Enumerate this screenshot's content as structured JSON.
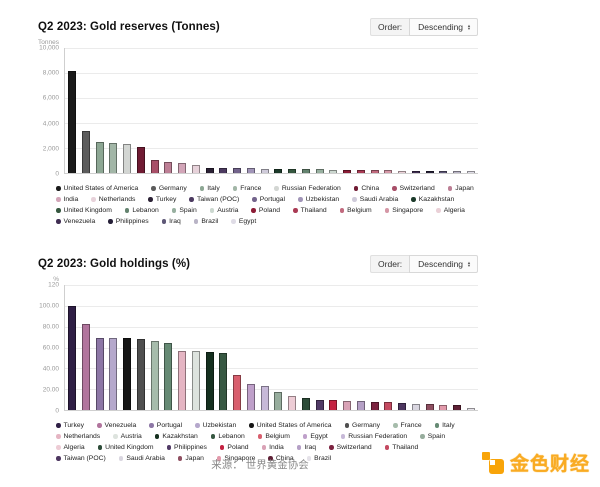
{
  "chart_data": [
    {
      "type": "bar",
      "title": "Q2 2023: Gold reserves (Tonnes)",
      "ylabel": "Tonnes",
      "xlabel": "",
      "ylim": [
        0,
        10000
      ],
      "grid": true,
      "legend_position": "bottom",
      "order": {
        "label": "Order:",
        "value": "Descending"
      },
      "y_ticks": [
        {
          "v": 10000,
          "label": "10,000"
        },
        {
          "v": 8000,
          "label": "8,000"
        },
        {
          "v": 6000,
          "label": "6,000"
        },
        {
          "v": 4000,
          "label": "4,000"
        },
        {
          "v": 2000,
          "label": "2,000"
        },
        {
          "v": 0,
          "label": "0"
        }
      ],
      "series": [
        {
          "name": "United States of America",
          "value": 8133,
          "color": "#1a1a1a"
        },
        {
          "name": "Germany",
          "value": 3353,
          "color": "#5c5c5c"
        },
        {
          "name": "Italy",
          "value": 2452,
          "color": "#8da794"
        },
        {
          "name": "France",
          "value": 2437,
          "color": "#a2b6a7"
        },
        {
          "name": "Russian Federation",
          "value": 2330,
          "color": "#d3d6d3"
        },
        {
          "name": "China",
          "value": 2113,
          "color": "#701b33"
        },
        {
          "name": "Switzerland",
          "value": 1040,
          "color": "#a84f68"
        },
        {
          "name": "Japan",
          "value": 846,
          "color": "#bd7f95"
        },
        {
          "name": "India",
          "value": 797,
          "color": "#d2a5b8"
        },
        {
          "name": "Netherlands",
          "value": 612,
          "color": "#e7d2da"
        },
        {
          "name": "Turkey",
          "value": 440,
          "color": "#2b2135"
        },
        {
          "name": "Taiwan (POC)",
          "value": 424,
          "color": "#4c3a60"
        },
        {
          "name": "Portugal",
          "value": 383,
          "color": "#73648c"
        },
        {
          "name": "Uzbekistan",
          "value": 377,
          "color": "#a195b8"
        },
        {
          "name": "Saudi Arabia",
          "value": 323,
          "color": "#cfcbda"
        },
        {
          "name": "Kazakhstan",
          "value": 314,
          "color": "#1c3a2a"
        },
        {
          "name": "United Kingdom",
          "value": 310,
          "color": "#35573f"
        },
        {
          "name": "Lebanon",
          "value": 287,
          "color": "#64836f"
        },
        {
          "name": "Spain",
          "value": 282,
          "color": "#98b0a0"
        },
        {
          "name": "Austria",
          "value": 280,
          "color": "#cbd7cf"
        },
        {
          "name": "Poland",
          "value": 263,
          "color": "#8c1c36"
        },
        {
          "name": "Thailand",
          "value": 244,
          "color": "#aa3a54"
        },
        {
          "name": "Belgium",
          "value": 227,
          "color": "#c16a7e"
        },
        {
          "name": "Singapore",
          "value": 222,
          "color": "#d597a6"
        },
        {
          "name": "Algeria",
          "value": 174,
          "color": "#ead0d7"
        },
        {
          "name": "Venezuela",
          "value": 161,
          "color": "#3f2d52"
        },
        {
          "name": "Philippines",
          "value": 157,
          "color": "#262038"
        },
        {
          "name": "Iraq",
          "value": 130,
          "color": "#5e5877"
        },
        {
          "name": "Brazil",
          "value": 130,
          "color": "#b9b4c6"
        },
        {
          "name": "Egypt",
          "value": 126,
          "color": "#dfdce6"
        }
      ]
    },
    {
      "type": "bar",
      "title": "Q2 2023: Gold holdings (%)",
      "ylabel": "%",
      "xlabel": "",
      "ylim": [
        0,
        120
      ],
      "grid": true,
      "legend_position": "bottom",
      "order": {
        "label": "Order:",
        "value": "Descending"
      },
      "y_ticks": [
        {
          "v": 120,
          "label": "120"
        },
        {
          "v": 100,
          "label": "100.00"
        },
        {
          "v": 80,
          "label": "80.00"
        },
        {
          "v": 60,
          "label": "60.00"
        },
        {
          "v": 40,
          "label": "40.00"
        },
        {
          "v": 20,
          "label": "20.00"
        },
        {
          "v": 0,
          "label": "0"
        }
      ],
      "series": [
        {
          "name": "Turkey",
          "value": 100,
          "color": "#2f1f45"
        },
        {
          "name": "Venezuela",
          "value": 83,
          "color": "#b1749d"
        },
        {
          "name": "Portugal",
          "value": 69.5,
          "color": "#8d77a6"
        },
        {
          "name": "Uzbekistan",
          "value": 69,
          "color": "#b5a8cc"
        },
        {
          "name": "United States of America",
          "value": 68.8,
          "color": "#161616"
        },
        {
          "name": "Germany",
          "value": 67.9,
          "color": "#4f4f4f"
        },
        {
          "name": "France",
          "value": 66.5,
          "color": "#a6bcab"
        },
        {
          "name": "Italy",
          "value": 64.5,
          "color": "#668a74"
        },
        {
          "name": "Netherlands",
          "value": 57,
          "color": "#e5b5c3"
        },
        {
          "name": "Austria",
          "value": 56.5,
          "color": "#dde3de"
        },
        {
          "name": "Kazakhstan",
          "value": 56,
          "color": "#15301f"
        },
        {
          "name": "Lebanon",
          "value": 55,
          "color": "#375842"
        },
        {
          "name": "Belgium",
          "value": 34,
          "color": "#d85f6e"
        },
        {
          "name": "Egypt",
          "value": 24.5,
          "color": "#bfa0ca"
        },
        {
          "name": "Russian Federation",
          "value": 23.5,
          "color": "#c7b9d8"
        },
        {
          "name": "Spain",
          "value": 17.5,
          "color": "#97ad9d"
        },
        {
          "name": "Algeria",
          "value": 13,
          "color": "#edccd5"
        },
        {
          "name": "United Kingdom",
          "value": 11.5,
          "color": "#2c4b38"
        },
        {
          "name": "Philippines",
          "value": 10,
          "color": "#513a66"
        },
        {
          "name": "Poland",
          "value": 9.5,
          "color": "#c42242"
        },
        {
          "name": "India",
          "value": 9,
          "color": "#d9a2b6"
        },
        {
          "name": "Iraq",
          "value": 8.5,
          "color": "#b5a0c6"
        },
        {
          "name": "Switzerland",
          "value": 8,
          "color": "#7c2340"
        },
        {
          "name": "Thailand",
          "value": 8,
          "color": "#c44a61"
        },
        {
          "name": "Taiwan (POC)",
          "value": 7,
          "color": "#4d3660"
        },
        {
          "name": "Saudi Arabia",
          "value": 6,
          "color": "#d9d6e0"
        },
        {
          "name": "Japan",
          "value": 5.5,
          "color": "#8f4f61"
        },
        {
          "name": "Singapore",
          "value": 5,
          "color": "#e29aab"
        },
        {
          "name": "China",
          "value": 4.5,
          "color": "#5f2136"
        },
        {
          "name": "Brazil",
          "value": 1.5,
          "color": "#e5e2e9"
        }
      ]
    }
  ],
  "footer": {
    "source": "来源： 世界黄金协会"
  },
  "logo": {
    "text": "金色财经",
    "accent_color": "#f8a409"
  }
}
